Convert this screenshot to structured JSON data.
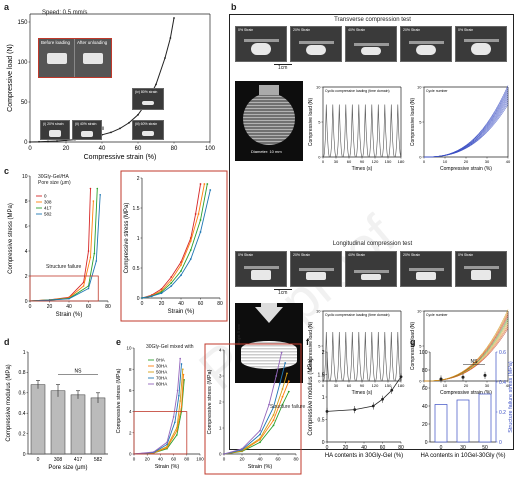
{
  "panels": {
    "a": "a",
    "b": "b",
    "c": "c",
    "d": "d",
    "e": "e",
    "f": "f",
    "g": "g"
  },
  "watermark": "Pre-proof",
  "panel_a": {
    "speed_label": "Speed: 0.5 mm/s",
    "before_label": "Before loading",
    "after_label": "After unloading",
    "photo_labels": [
      "(i) 20% strain",
      "(ii) 40% strain",
      "(iii) 60% strain",
      "(iv) 80% strain"
    ],
    "annotation_i": "i",
    "annotation_ii": "ii",
    "xlabel": "Compressive strain (%)",
    "ylabel": "Compressive load (N)"
  },
  "panel_b": {
    "transverse_title": "Transverse compression test",
    "longitudinal_title": "Longitudinal compression test",
    "strain_photo_labels": [
      "0% Strain",
      "20% Strain",
      "40% Strain",
      "20% Strain",
      "0% Strain"
    ],
    "scale_bar": "1cm",
    "diameter_label": "Diameter: 10 mm",
    "height_label": "Height: 5 mm",
    "cyclic_label": "Cyclic compressive loading (time domain)",
    "load_ylabel": "Compressive load (N)",
    "time_xlabel": "Times (s)",
    "strain_xlabel": "Compressive strain (%)",
    "cycle_legend": "Cycle number"
  },
  "panel_c": {
    "legend_title": "30Gly-Gel/HA",
    "legend_subtitle": "Pore size (μm)",
    "structure_failure": "Structure failure",
    "xlabel": "Strain (%)",
    "ylabel": "Compressive stress (MPa)"
  },
  "panel_d": {
    "ylabel": "Compressive modulus (MPa)",
    "xlabel": "Pore size (μm)",
    "ns_label": "NS"
  },
  "panel_e": {
    "legend_title": "30Gly-Gel mixed with",
    "structure_failure": "Structure failure",
    "xlabel": "Strain (%)",
    "ylabel": "Compressive stress (MPa)"
  },
  "panel_f": {
    "xlabel": "HA contents in 30Gly-Gel (%)",
    "ylabel": "Compressive modulus (MPa)"
  },
  "panel_g": {
    "xlabel": "HA contents in 10Gel-30Gly (%)",
    "ylabel_left": "Maximum strain (%)",
    "ylabel_right": "Structure failure stress (MPa)",
    "ns_label": "NS"
  },
  "chart_data": [
    {
      "id": "a",
      "type": "line",
      "xlabel": "Compressive strain (%)",
      "ylabel": "Compressive load (N)",
      "xlim": [
        0,
        100
      ],
      "ylim": [
        0,
        160
      ],
      "xticks": [
        0,
        20,
        40,
        60,
        80,
        100
      ],
      "yticks": [
        0,
        50,
        100,
        150
      ],
      "x": [
        0,
        5,
        10,
        15,
        20,
        25,
        30,
        35,
        40,
        45,
        50,
        55,
        60,
        65,
        70,
        75,
        78,
        80
      ],
      "y": [
        0,
        0.3,
        0.7,
        1.2,
        2,
        3,
        4.5,
        6.5,
        9,
        12,
        17,
        24,
        34,
        50,
        72,
        105,
        130,
        155
      ],
      "color": "#222222"
    },
    {
      "id": "b-transverse-time",
      "type": "line",
      "xlabel": "Times (s)",
      "ylabel": "Compressive load (N)",
      "xlim": [
        0,
        180
      ],
      "ylim": [
        0,
        10
      ],
      "xticks": [
        0,
        30,
        60,
        90,
        120,
        150,
        180
      ],
      "yticks": [
        0,
        5,
        10
      ],
      "peaks": 12,
      "peak_value": 7.5,
      "color": "#555555"
    },
    {
      "id": "b-transverse-strain",
      "type": "line",
      "xlabel": "Compressive strain (%)",
      "ylabel": "Compressive load (N)",
      "xlim": [
        0,
        40
      ],
      "ylim": [
        0,
        10
      ],
      "xticks": [
        0,
        10,
        20,
        30,
        40
      ],
      "yticks": [
        0,
        5,
        10
      ],
      "cycles": 10,
      "color": "#3b4fc4"
    },
    {
      "id": "b-longitudinal-time",
      "type": "line",
      "xlabel": "Times (s)",
      "ylabel": "Compressive load (N)",
      "xlim": [
        0,
        180
      ],
      "ylim": [
        0,
        10
      ],
      "xticks": [
        0,
        30,
        60,
        90,
        120,
        150,
        180
      ],
      "yticks": [
        0,
        5,
        10
      ],
      "peaks": 12,
      "peak_value": 7,
      "color": "#555555"
    },
    {
      "id": "b-longitudinal-strain",
      "type": "line",
      "xlabel": "Compressive strain (%)",
      "ylabel": "Compressive load (N)",
      "xlim": [
        0,
        40
      ],
      "ylim": [
        0,
        10
      ],
      "xticks": [
        0,
        10,
        20,
        30,
        40
      ],
      "yticks": [
        0,
        5,
        10
      ],
      "cycles": 10,
      "colors": [
        "#c0392b",
        "#d35400",
        "#e67e22",
        "#c9a227",
        "#8aa52b",
        "#4f9a3c"
      ]
    },
    {
      "id": "c-full",
      "type": "line",
      "xlabel": "Strain (%)",
      "ylabel": "Compressive stress (MPa)",
      "xlim": [
        0,
        80
      ],
      "ylim": [
        0,
        10
      ],
      "xticks": [
        0,
        20,
        40,
        60,
        80
      ],
      "yticks": [
        0,
        2,
        4,
        6,
        8,
        10
      ],
      "series": [
        {
          "name": "0",
          "color": "#d62728",
          "x": [
            0,
            20,
            40,
            55,
            60,
            62
          ],
          "y": [
            0,
            0.1,
            0.3,
            1.5,
            4,
            9
          ]
        },
        {
          "name": "308",
          "color": "#ff7f0e",
          "x": [
            0,
            20,
            40,
            55,
            62,
            65
          ],
          "y": [
            0,
            0.1,
            0.25,
            1.2,
            3.5,
            8
          ]
        },
        {
          "name": "417",
          "color": "#2ca02c",
          "x": [
            0,
            20,
            40,
            60,
            66,
            69
          ],
          "y": [
            0,
            0.08,
            0.2,
            1.2,
            3.8,
            9
          ]
        },
        {
          "name": "582",
          "color": "#1f77b4",
          "x": [
            0,
            20,
            40,
            60,
            68,
            72
          ],
          "y": [
            0,
            0.07,
            0.18,
            1.0,
            3.2,
            8.5
          ]
        }
      ]
    },
    {
      "id": "c-zoom",
      "type": "line",
      "xlabel": "Strain (%)",
      "ylabel": "Compressive stress (MPa)",
      "xlim": [
        0,
        80
      ],
      "ylim": [
        0,
        2
      ],
      "xticks": [
        0,
        20,
        40,
        60,
        80
      ],
      "yticks": [
        0,
        0.5,
        1,
        1.5,
        2
      ],
      "series": [
        {
          "name": "0",
          "color": "#d62728",
          "x": [
            0,
            10,
            20,
            30,
            40,
            50,
            55,
            60
          ],
          "y": [
            0,
            0.05,
            0.15,
            0.35,
            0.6,
            1.0,
            1.4,
            1.9
          ]
        },
        {
          "name": "308",
          "color": "#ff7f0e",
          "x": [
            0,
            10,
            20,
            30,
            40,
            50,
            58,
            64
          ],
          "y": [
            0,
            0.04,
            0.12,
            0.3,
            0.55,
            0.95,
            1.4,
            1.9
          ]
        },
        {
          "name": "417",
          "color": "#2ca02c",
          "x": [
            0,
            10,
            20,
            30,
            40,
            50,
            60,
            67
          ],
          "y": [
            0,
            0.03,
            0.1,
            0.25,
            0.45,
            0.8,
            1.3,
            1.9
          ]
        },
        {
          "name": "582",
          "color": "#1f77b4",
          "x": [
            0,
            10,
            20,
            30,
            40,
            50,
            60,
            70
          ],
          "y": [
            0,
            0.03,
            0.08,
            0.2,
            0.38,
            0.65,
            1.1,
            1.8
          ]
        }
      ]
    },
    {
      "id": "d",
      "type": "bar",
      "xlabel": "Pore size (μm)",
      "ylabel": "Compressive modulus (MPa)",
      "categories": [
        "0",
        "308",
        "417",
        "582"
      ],
      "values": [
        0.68,
        0.62,
        0.58,
        0.55
      ],
      "errors": [
        0.04,
        0.06,
        0.04,
        0.05
      ],
      "ylim": [
        0,
        1
      ],
      "yticks": [
        0,
        0.2,
        0.4,
        0.6,
        0.8,
        1
      ],
      "color": "#bbbbbb"
    },
    {
      "id": "e-full",
      "type": "line",
      "xlabel": "Strain (%)",
      "ylabel": "Compressive stress (MPa)",
      "xlim": [
        0,
        100
      ],
      "ylim": [
        0,
        10
      ],
      "xticks": [
        0,
        20,
        40,
        60,
        80,
        100
      ],
      "yticks": [
        0,
        2,
        4,
        6,
        8,
        10
      ],
      "series": [
        {
          "name": "0HA",
          "color": "#2ca02c",
          "x": [
            0,
            30,
            50,
            65,
            72,
            76
          ],
          "y": [
            0,
            0.1,
            0.5,
            1.8,
            4,
            7
          ]
        },
        {
          "name": "30HA",
          "color": "#ff7f0e",
          "x": [
            0,
            30,
            50,
            65,
            72,
            75
          ],
          "y": [
            0,
            0.1,
            0.6,
            2.2,
            4.5,
            7.5
          ]
        },
        {
          "name": "50HA",
          "color": "#d4a017",
          "x": [
            0,
            30,
            50,
            65,
            70,
            74
          ],
          "y": [
            0,
            0.12,
            0.7,
            2.5,
            5,
            8
          ]
        },
        {
          "name": "70HA",
          "color": "#1f77b4",
          "x": [
            0,
            30,
            50,
            62,
            68,
            72
          ],
          "y": [
            0,
            0.15,
            0.9,
            3,
            5.5,
            8.5
          ]
        },
        {
          "name": "80HA",
          "color": "#9467bd",
          "x": [
            0,
            30,
            50,
            60,
            66,
            70
          ],
          "y": [
            0,
            0.2,
            1.1,
            3.5,
            6,
            9
          ]
        }
      ]
    },
    {
      "id": "e-zoom",
      "type": "line",
      "xlabel": "Strain (%)",
      "ylabel": "Compressive stress (MPa)",
      "xlim": [
        0,
        80
      ],
      "ylim": [
        0,
        4
      ],
      "xticks": [
        0,
        20,
        40,
        60,
        80
      ],
      "yticks": [
        0,
        1,
        2,
        3,
        4
      ],
      "series": [
        {
          "name": "0HA",
          "color": "#2ca02c",
          "x": [
            0,
            20,
            40,
            55,
            65,
            72
          ],
          "y": [
            0,
            0.1,
            0.45,
            1.1,
            1.9,
            2.4
          ]
        },
        {
          "name": "30HA",
          "color": "#ff7f0e",
          "x": [
            0,
            20,
            40,
            55,
            65,
            72
          ],
          "y": [
            0,
            0.12,
            0.55,
            1.3,
            2.2,
            2.8
          ]
        },
        {
          "name": "50HA",
          "color": "#d4a017",
          "x": [
            0,
            20,
            40,
            55,
            65,
            70
          ],
          "y": [
            0,
            0.14,
            0.6,
            1.5,
            2.5,
            3.1
          ]
        },
        {
          "name": "70HA",
          "color": "#1f77b4",
          "x": [
            0,
            20,
            40,
            55,
            62,
            68
          ],
          "y": [
            0,
            0.16,
            0.75,
            1.8,
            2.7,
            3.5
          ]
        },
        {
          "name": "80HA",
          "color": "#9467bd",
          "x": [
            0,
            20,
            40,
            50,
            58,
            64
          ],
          "y": [
            0,
            0.2,
            0.9,
            1.9,
            3.0,
            3.9
          ]
        }
      ]
    },
    {
      "id": "f",
      "type": "scatter",
      "xlabel": "HA contents in 30Gly-Gel (%)",
      "ylabel": "Compressive modulus (MPa)",
      "xlim": [
        0,
        80
      ],
      "ylim": [
        0,
        2
      ],
      "xticks": [
        0,
        20,
        40,
        60,
        80
      ],
      "yticks": [
        0,
        0.5,
        1,
        1.5,
        2
      ],
      "x": [
        0,
        30,
        50,
        60,
        70,
        80
      ],
      "y": [
        0.68,
        0.72,
        0.8,
        0.95,
        1.15,
        1.45
      ],
      "color": "#222222"
    },
    {
      "id": "g",
      "type": "bar",
      "xlabel": "HA contents in 10Gel-30Gly (%)",
      "ylabel": "Maximum strain (%)",
      "categories": [
        "0",
        "30",
        "50"
      ],
      "series": [
        {
          "name": "Maximum strain (%)",
          "values": [
            70,
            72,
            74
          ],
          "color": "#222222"
        },
        {
          "name": "Structure failure stress (MPa)",
          "values": [
            0.25,
            0.28,
            0.32
          ],
          "color": "#3b4fc4"
        }
      ],
      "ylim_left": [
        0,
        100
      ],
      "ylim_right": [
        0,
        0.6
      ]
    }
  ]
}
